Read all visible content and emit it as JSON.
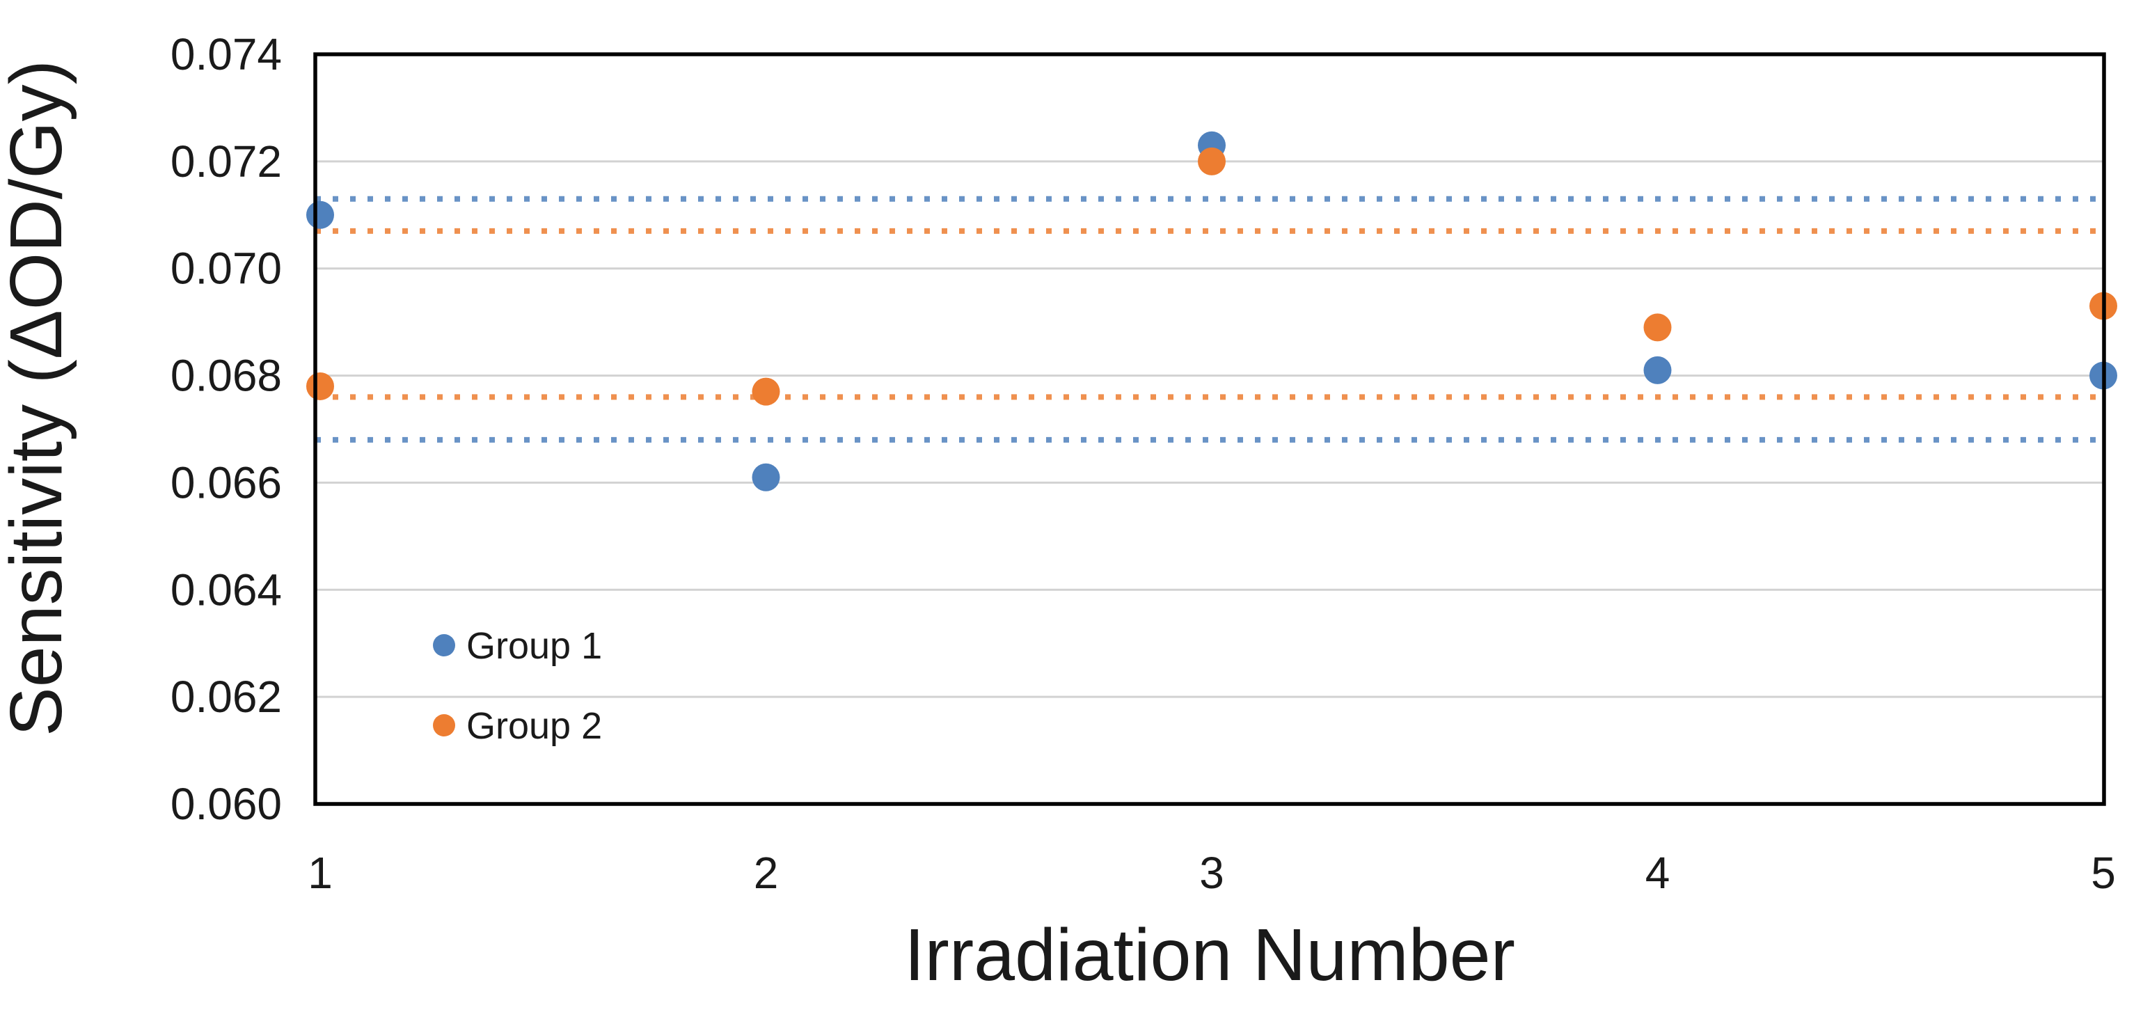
{
  "chart_data": {
    "type": "scatter",
    "xlabel": "Irradiation Number",
    "ylabel": "Sensitivity (ΔOD/Gy)",
    "xlim": [
      1,
      5
    ],
    "ylim": [
      0.06,
      0.074
    ],
    "x_ticks": [
      "1",
      "2",
      "3",
      "4",
      "5"
    ],
    "y_ticks": [
      "0.060",
      "0.062",
      "0.064",
      "0.066",
      "0.068",
      "0.070",
      "0.072",
      "0.074"
    ],
    "grid": "horizontal-only",
    "gridline_color": "#D2D2D2",
    "axis_color": "#000000",
    "legend_position": "inside lower-left",
    "categories_x": [
      1,
      2,
      3,
      4,
      5
    ],
    "series": [
      {
        "name": "Group 1",
        "marker": "circle",
        "color": "#4F81BD",
        "y": [
          0.071,
          0.0661,
          0.0723,
          0.0681,
          0.068
        ]
      },
      {
        "name": "Group 2",
        "marker": "circle",
        "color": "#ED7D31",
        "y": [
          0.0678,
          0.0677,
          0.072,
          0.0689,
          0.0693
        ]
      }
    ],
    "reference_lines": [
      {
        "group": "Group 1",
        "position": "upper",
        "y": 0.0713,
        "style": "dotted",
        "color": "#4F81BD"
      },
      {
        "group": "Group 1",
        "position": "lower",
        "y": 0.0668,
        "style": "dotted",
        "color": "#4F81BD"
      },
      {
        "group": "Group 2",
        "position": "upper",
        "y": 0.0707,
        "style": "dotted",
        "color": "#ED7D31"
      },
      {
        "group": "Group 2",
        "position": "lower",
        "y": 0.0676,
        "style": "dotted",
        "color": "#ED7D31"
      }
    ],
    "legend": [
      {
        "label": "Group 1",
        "color": "#4F81BD"
      },
      {
        "label": "Group 2",
        "color": "#ED7D31"
      }
    ]
  }
}
